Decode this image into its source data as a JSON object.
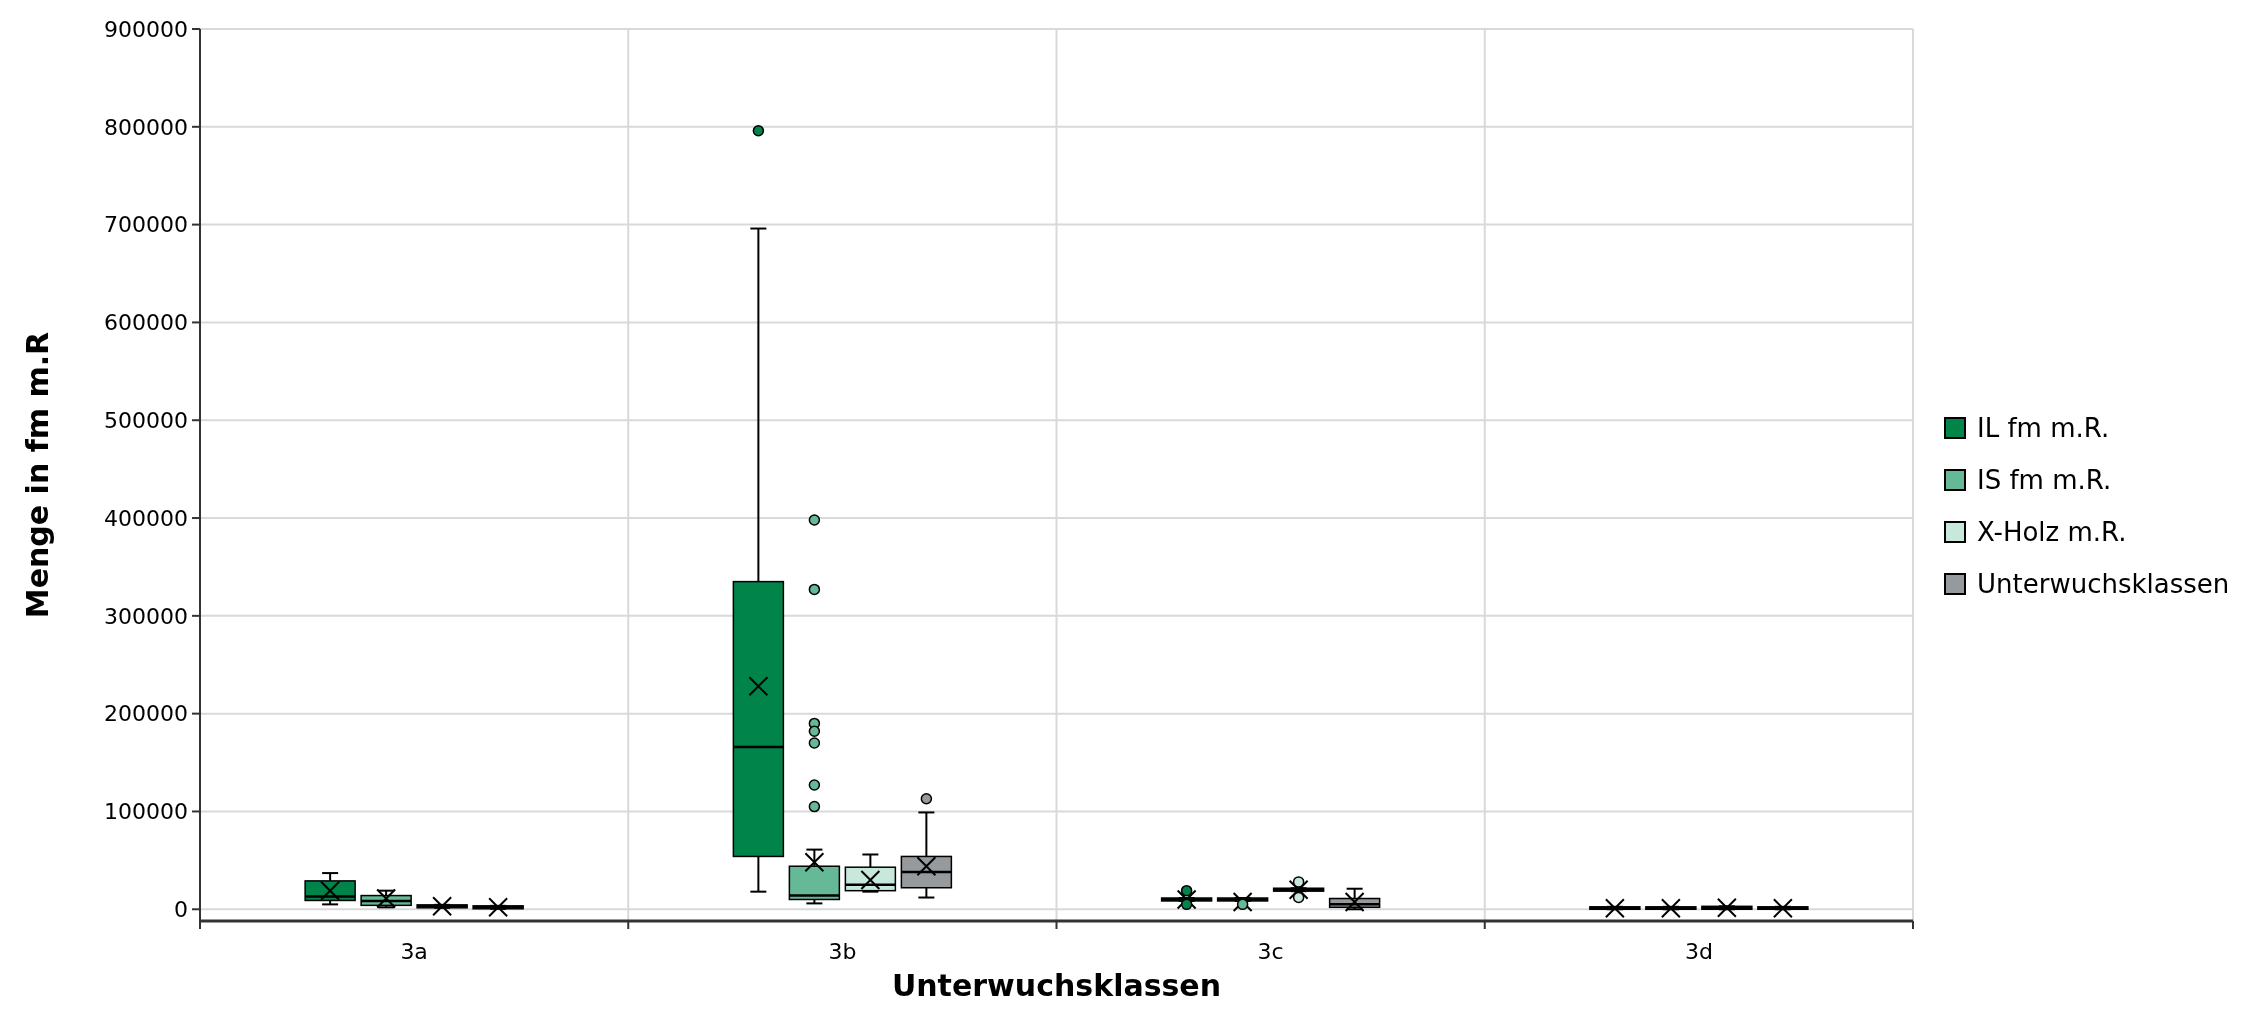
{
  "chart_data": {
    "type": "box",
    "xlabel": "Unterwuchsklassen",
    "ylabel": "Menge in fm m.R",
    "categories": [
      "3a",
      "3b",
      "3c",
      "3d"
    ],
    "ylim": [
      -12000,
      900000
    ],
    "yticks": [
      0,
      100000,
      200000,
      300000,
      400000,
      500000,
      600000,
      700000,
      800000,
      900000
    ],
    "grid": true,
    "legend": "right",
    "series": [
      {
        "name": "IL fm m.R.",
        "color": "#00844a",
        "boxes": [
          {
            "low": 5000,
            "q1": 9000,
            "median": 13000,
            "q3": 29000,
            "high": 37000,
            "mean": 19000
          },
          {
            "low": 18000,
            "q1": 54000,
            "median": 166000,
            "q3": 335000,
            "high": 696000,
            "mean": 228000,
            "outliers": [
              796000
            ]
          },
          {
            "low": 8500,
            "q1": 8500,
            "median": 10000,
            "q3": 11500,
            "high": 11500,
            "mean": 10000,
            "outliers": [
              19000,
              5000
            ]
          },
          {
            "low": 0,
            "q1": 0,
            "median": 1000,
            "q3": 2500,
            "high": 2500,
            "mean": 1000
          }
        ]
      },
      {
        "name": "IS fm m.R.",
        "color": "#66b996",
        "boxes": [
          {
            "low": 2000,
            "q1": 4000,
            "median": 8500,
            "q3": 14000,
            "high": 19000,
            "mean": 11000
          },
          {
            "low": 6000,
            "q1": 10000,
            "median": 14000,
            "q3": 44000,
            "high": 61000,
            "mean": 48000,
            "outliers": [
              398000,
              327000,
              190000,
              182000,
              170000,
              127000,
              105000
            ]
          },
          {
            "low": 8500,
            "q1": 8500,
            "median": 10000,
            "q3": 11500,
            "high": 11500,
            "mean": 7500,
            "outliers": [
              5000
            ]
          },
          {
            "low": 0,
            "q1": 0,
            "median": 1000,
            "q3": 2500,
            "high": 2500,
            "mean": 1000
          }
        ]
      },
      {
        "name": "X-Holz m.R.",
        "color": "#c9e8dc",
        "boxes": [
          {
            "low": 1500,
            "q1": 1500,
            "median": 3000,
            "q3": 4500,
            "high": 4500,
            "mean": 3000
          },
          {
            "low": 18000,
            "q1": 19000,
            "median": 25000,
            "q3": 43000,
            "high": 56000,
            "mean": 30000
          },
          {
            "low": 18500,
            "q1": 18500,
            "median": 20000,
            "q3": 21500,
            "high": 21500,
            "mean": 20000,
            "outliers": [
              28000,
              12000
            ]
          },
          {
            "low": 0,
            "q1": 0,
            "median": 1500,
            "q3": 3000,
            "high": 3000,
            "mean": 1500
          }
        ]
      },
      {
        "name": "Unterwuchsklassen",
        "color": "#969a9c",
        "boxes": [
          {
            "low": 500,
            "q1": 500,
            "median": 2000,
            "q3": 3500,
            "high": 3500,
            "mean": 2000
          },
          {
            "low": 12000,
            "q1": 22000,
            "median": 38000,
            "q3": 54000,
            "high": 99000,
            "mean": 44000,
            "outliers": [
              113000
            ]
          },
          {
            "low": 0,
            "q1": 2000,
            "median": 5000,
            "q3": 11000,
            "high": 21000,
            "mean": 7500
          },
          {
            "low": 0,
            "q1": 0,
            "median": 1000,
            "q3": 2500,
            "high": 2500,
            "mean": 1000
          }
        ]
      }
    ]
  }
}
